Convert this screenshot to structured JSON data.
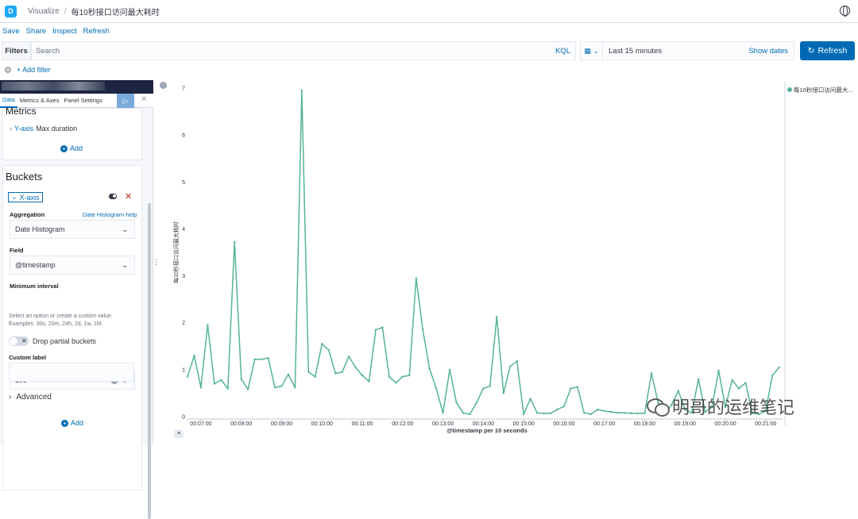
{
  "header": {
    "logo_letter": "D",
    "breadcrumb_root": "Visualize",
    "breadcrumb_sep": "/",
    "breadcrumb_current": "每10秒接口访问最大耗时"
  },
  "menu": {
    "save": "Save",
    "share": "Share",
    "inspect": "Inspect",
    "refresh": "Refresh"
  },
  "query": {
    "filters_label": "Filters",
    "search_placeholder": "Search",
    "kql": "KQL",
    "time_range": "Last 15 minutes",
    "show_dates": "Show dates",
    "refresh_button": "Refresh",
    "add_filter": "+ Add filter"
  },
  "sidebar": {
    "tabs": [
      "Data",
      "Metrics & Axes",
      "Panel Settings"
    ],
    "metrics_title": "Metrics",
    "yaxis_label": "Y-axis",
    "yaxis_value": "Max duration",
    "add_label": "Add",
    "buckets_title": "Buckets",
    "xaxis_label": "X-axis",
    "aggregation_label": "Aggregation",
    "aggregation_help": "Date Histogram help",
    "aggregation_value": "Date Histogram",
    "field_label": "Field",
    "field_value": "@timestamp",
    "min_interval_label": "Minimum interval",
    "min_interval_value": "10s",
    "hint_text": "Select an option or create a custom value. Examples: 30s, 20m, 24h, 2d, 1w, 1M",
    "drop_partial": "Drop partial buckets",
    "custom_label": "Custom label",
    "advanced": "Advanced",
    "add_bottom": "Add"
  },
  "watermark": "明哥的运维笔记",
  "chart_data": {
    "type": "line",
    "title": "",
    "xlabel": "@timestamp per 10 seconds",
    "ylabel": "每10秒接口访问最大耗时",
    "ylim": [
      0,
      7
    ],
    "yticks": [
      0,
      1,
      2,
      3,
      4,
      5,
      6,
      7
    ],
    "xticks": [
      "00:07:00",
      "00:08:00",
      "00:09:00",
      "00:10:00",
      "00:11:00",
      "00:12:00",
      "00:13:00",
      "00:14:00",
      "00:15:00",
      "00:16:00",
      "00:17:00",
      "00:18:00",
      "00:19:00",
      "00:20:00",
      "00:21:00"
    ],
    "legend_position": "top-right",
    "grid": false,
    "series": [
      {
        "name": "每10秒接口访问最大...",
        "color": "#54b399",
        "x": [
          "00:06:40",
          "00:06:50",
          "00:07:00",
          "00:07:10",
          "00:07:20",
          "00:07:30",
          "00:07:40",
          "00:07:50",
          "00:08:00",
          "00:08:10",
          "00:08:20",
          "00:08:30",
          "00:08:40",
          "00:08:50",
          "00:09:00",
          "00:09:10",
          "00:09:20",
          "00:09:30",
          "00:09:40",
          "00:09:50",
          "00:10:00",
          "00:10:10",
          "00:10:20",
          "00:10:30",
          "00:10:40",
          "00:10:50",
          "00:11:00",
          "00:11:10",
          "00:11:20",
          "00:11:30",
          "00:11:40",
          "00:11:50",
          "00:12:00",
          "00:12:10",
          "00:12:20",
          "00:12:30",
          "00:12:40",
          "00:12:50",
          "00:13:00",
          "00:13:10",
          "00:13:20",
          "00:13:30",
          "00:13:40",
          "00:13:50",
          "00:14:00",
          "00:14:10",
          "00:14:20",
          "00:14:30",
          "00:14:40",
          "00:14:50",
          "00:15:00",
          "00:15:10",
          "00:15:20",
          "00:15:30",
          "00:15:40",
          "00:15:50",
          "00:16:00",
          "00:16:10",
          "00:16:20",
          "00:16:30",
          "00:16:40",
          "00:16:50",
          "00:17:00",
          "00:17:10",
          "00:17:20",
          "00:17:30",
          "00:17:40",
          "00:17:50",
          "00:18:00",
          "00:18:10",
          "00:18:20",
          "00:18:30",
          "00:18:40",
          "00:18:50",
          "00:19:00",
          "00:19:10",
          "00:19:20",
          "00:19:30",
          "00:19:40",
          "00:19:50",
          "00:20:00",
          "00:20:10",
          "00:20:20",
          "00:20:30",
          "00:20:40",
          "00:20:50",
          "00:21:00",
          "00:21:10",
          "00:21:20"
        ],
        "y": [
          0.85,
          1.3,
          0.62,
          1.95,
          0.7,
          0.78,
          0.6,
          3.72,
          0.8,
          0.58,
          1.22,
          1.22,
          1.25,
          0.62,
          0.65,
          0.9,
          0.62,
          6.95,
          0.95,
          0.85,
          1.55,
          1.42,
          0.92,
          0.95,
          1.28,
          1.05,
          0.88,
          0.75,
          1.85,
          1.9,
          0.85,
          0.72,
          0.85,
          0.88,
          2.95,
          1.85,
          1.02,
          0.6,
          0.08,
          1.0,
          0.3,
          0.08,
          0.05,
          0.3,
          0.6,
          0.65,
          2.13,
          0.5,
          1.07,
          1.18,
          0.05,
          0.38,
          0.08,
          0.07,
          0.07,
          0.15,
          0.22,
          0.6,
          0.63,
          0.08,
          0.05,
          0.15,
          0.12,
          0.1,
          0.08,
          0.08,
          0.07,
          0.07,
          0.07,
          0.92,
          0.3,
          0.08,
          0.25,
          0.55,
          0.15,
          0.08,
          0.8,
          0.1,
          0.2,
          0.98,
          0.2,
          0.78,
          0.6,
          0.72,
          0.08,
          0.05,
          0.12,
          0.88,
          1.05
        ]
      }
    ]
  }
}
